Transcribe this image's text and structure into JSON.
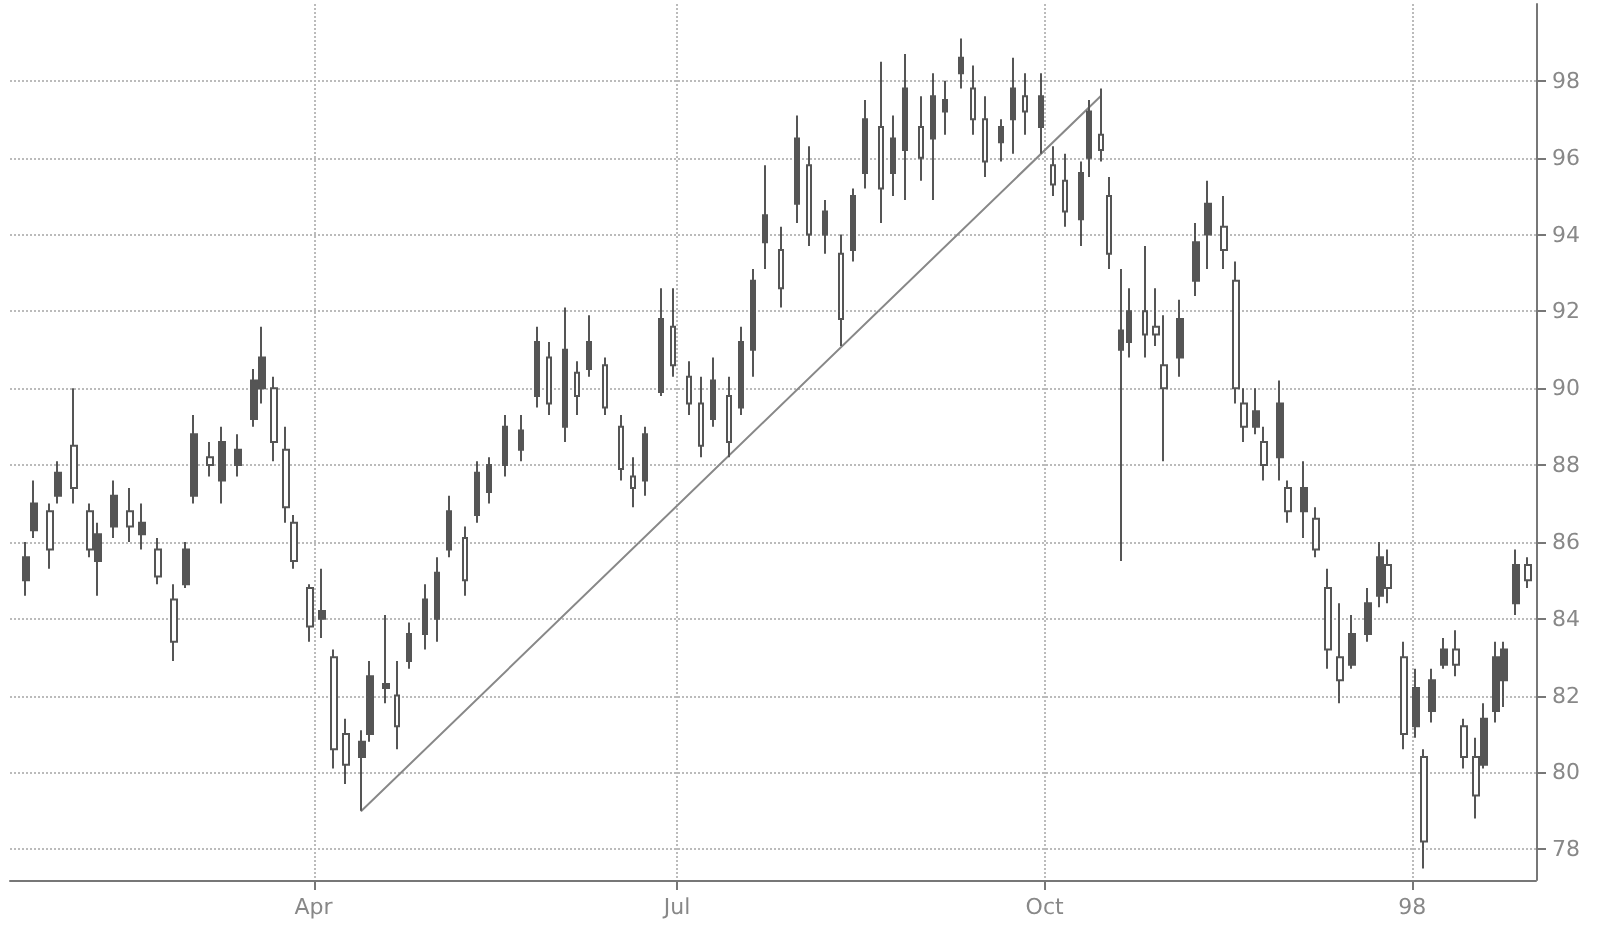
{
  "chart_data": {
    "type": "candlestick",
    "x": [
      "1997-01-19",
      "1997-01-21",
      "1997-01-25",
      "1997-01-27",
      "1997-01-31",
      "1997-02-04",
      "1997-02-06",
      "1997-02-10",
      "1997-02-14",
      "1997-02-17",
      "1997-02-21",
      "1997-02-25",
      "1997-02-28",
      "1997-03-02",
      "1997-03-06",
      "1997-03-09",
      "1997-03-13",
      "1997-03-17",
      "1997-03-19",
      "1997-03-22",
      "1997-03-25",
      "1997-03-27",
      "1997-03-31",
      "1997-04-03",
      "1997-04-06",
      "1997-04-09",
      "1997-04-13",
      "1997-04-15",
      "1997-04-19",
      "1997-04-22",
      "1997-04-25",
      "1997-04-29",
      "1997-05-02",
      "1997-05-05",
      "1997-05-09",
      "1997-05-12",
      "1997-05-15",
      "1997-05-19",
      "1997-05-23",
      "1997-05-27",
      "1997-05-30",
      "1997-06-03",
      "1997-06-06",
      "1997-06-09",
      "1997-06-13",
      "1997-06-17",
      "1997-06-20",
      "1997-06-23",
      "1997-06-27",
      "1997-06-30",
      "1997-07-04",
      "1997-07-07",
      "1997-07-10",
      "1997-07-14",
      "1997-07-17",
      "1997-07-20",
      "1997-07-23",
      "1997-07-27",
      "1997-07-31",
      "1997-08-03",
      "1997-08-07",
      "1997-08-11",
      "1997-08-14",
      "1997-08-17",
      "1997-08-21",
      "1997-08-24",
      "1997-08-27",
      "1997-08-31",
      "1997-09-03",
      "1997-09-06",
      "1997-09-10",
      "1997-09-13",
      "1997-09-16",
      "1997-09-20",
      "1997-09-23",
      "1997-09-26",
      "1997-09-30",
      "1997-10-03",
      "1997-10-06",
      "1997-10-10",
      "1997-10-12",
      "1997-10-15",
      "1997-10-17",
      "1997-10-20",
      "1997-10-22",
      "1997-10-26",
      "1997-10-29",
      "1997-10-31",
      "1997-11-04",
      "1997-11-08",
      "1997-11-11",
      "1997-11-15",
      "1997-11-18",
      "1997-11-20",
      "1997-11-23",
      "1997-11-25",
      "1997-11-29",
      "1997-12-01",
      "1997-12-05",
      "1997-12-08",
      "1997-12-11",
      "1997-12-14",
      "1997-12-17",
      "1997-12-21",
      "1997-12-24",
      "1997-12-26",
      "1997-12-30",
      "1998-01-02",
      "1998-01-04",
      "1998-01-06",
      "1998-01-09",
      "1998-01-12",
      "1998-01-14",
      "1998-01-17",
      "1998-01-19",
      "1998-01-22",
      "1998-01-24",
      "1998-01-27",
      "1998-01-30"
    ],
    "series": [
      {
        "color": "#555555",
        "ohlc": [
          [
            85.0,
            86.0,
            84.6,
            85.6
          ],
          [
            86.3,
            87.6,
            86.1,
            87.0
          ],
          [
            86.8,
            87.0,
            85.3,
            85.8
          ],
          [
            87.2,
            88.1,
            87.0,
            87.8
          ],
          [
            88.5,
            90.0,
            87.0,
            87.4
          ],
          [
            86.8,
            87.0,
            85.6,
            85.8
          ],
          [
            85.5,
            86.5,
            84.6,
            86.2
          ],
          [
            86.4,
            87.6,
            86.1,
            87.2
          ],
          [
            86.8,
            87.4,
            86.0,
            86.4
          ],
          [
            86.2,
            87.0,
            85.8,
            86.5
          ],
          [
            85.8,
            86.1,
            84.9,
            85.1
          ],
          [
            84.5,
            84.9,
            82.9,
            83.4
          ],
          [
            84.9,
            86.0,
            84.8,
            85.8
          ],
          [
            87.2,
            89.3,
            87.0,
            88.8
          ],
          [
            88.2,
            88.6,
            87.7,
            88.0
          ],
          [
            87.6,
            89.0,
            87.0,
            88.6
          ],
          [
            88.0,
            88.8,
            87.7,
            88.4
          ],
          [
            89.2,
            90.5,
            89.0,
            90.2
          ],
          [
            90.0,
            91.6,
            89.6,
            90.8
          ],
          [
            90.0,
            90.3,
            88.1,
            88.6
          ],
          [
            88.4,
            89.0,
            86.5,
            86.9
          ],
          [
            86.5,
            86.7,
            85.3,
            85.5
          ],
          [
            84.8,
            84.9,
            83.4,
            83.8
          ],
          [
            84.0,
            85.3,
            83.5,
            84.2
          ],
          [
            83.0,
            83.2,
            80.1,
            80.6
          ],
          [
            81.0,
            81.4,
            79.7,
            80.2
          ],
          [
            80.4,
            81.1,
            79.0,
            80.8
          ],
          [
            81.0,
            82.9,
            80.8,
            82.5
          ],
          [
            82.2,
            84.1,
            81.8,
            82.3
          ],
          [
            82.0,
            82.9,
            80.6,
            81.2
          ],
          [
            82.9,
            83.9,
            82.7,
            83.6
          ],
          [
            83.6,
            84.9,
            83.2,
            84.5
          ],
          [
            84.0,
            85.6,
            83.4,
            85.2
          ],
          [
            85.8,
            87.2,
            85.6,
            86.8
          ],
          [
            86.1,
            86.4,
            84.6,
            85.0
          ],
          [
            86.7,
            88.1,
            86.5,
            87.8
          ],
          [
            87.3,
            88.2,
            87.0,
            88.0
          ],
          [
            88.0,
            89.3,
            87.7,
            89.0
          ],
          [
            88.4,
            89.3,
            88.1,
            88.9
          ],
          [
            89.8,
            91.6,
            89.5,
            91.2
          ],
          [
            90.8,
            91.2,
            89.3,
            89.6
          ],
          [
            89.0,
            92.1,
            88.6,
            91.0
          ],
          [
            90.4,
            90.7,
            89.3,
            89.8
          ],
          [
            90.5,
            91.9,
            90.3,
            91.2
          ],
          [
            90.6,
            90.8,
            89.3,
            89.5
          ],
          [
            89.0,
            89.3,
            87.6,
            87.9
          ],
          [
            87.7,
            88.2,
            86.9,
            87.4
          ],
          [
            87.6,
            89.0,
            87.2,
            88.8
          ],
          [
            89.9,
            92.6,
            89.8,
            91.8
          ],
          [
            91.6,
            92.6,
            90.3,
            90.6
          ],
          [
            90.3,
            90.7,
            89.3,
            89.6
          ],
          [
            89.6,
            90.3,
            88.2,
            88.5
          ],
          [
            89.2,
            90.8,
            89.0,
            90.2
          ],
          [
            89.8,
            90.3,
            88.2,
            88.6
          ],
          [
            89.5,
            91.6,
            89.3,
            91.2
          ],
          [
            91.0,
            93.1,
            90.3,
            92.8
          ],
          [
            93.8,
            95.8,
            93.1,
            94.5
          ],
          [
            93.6,
            94.2,
            92.1,
            92.6
          ],
          [
            94.8,
            97.1,
            94.3,
            96.5
          ],
          [
            95.8,
            96.3,
            93.7,
            94.0
          ],
          [
            94.0,
            94.9,
            93.5,
            94.6
          ],
          [
            93.5,
            94.0,
            91.1,
            91.8
          ],
          [
            93.6,
            95.2,
            93.3,
            95.0
          ],
          [
            95.6,
            97.5,
            95.2,
            97.0
          ],
          [
            96.8,
            98.5,
            94.3,
            95.2
          ],
          [
            95.6,
            97.1,
            95.0,
            96.5
          ],
          [
            96.2,
            98.7,
            94.9,
            97.8
          ],
          [
            96.8,
            97.6,
            95.4,
            96.0
          ],
          [
            96.5,
            98.2,
            94.9,
            97.6
          ],
          [
            97.2,
            98.0,
            96.6,
            97.5
          ],
          [
            98.2,
            99.1,
            97.8,
            98.6
          ],
          [
            97.8,
            98.4,
            96.6,
            97.0
          ],
          [
            97.0,
            97.6,
            95.5,
            95.9
          ],
          [
            96.4,
            97.0,
            95.9,
            96.8
          ],
          [
            97.0,
            98.6,
            96.1,
            97.8
          ],
          [
            97.6,
            98.2,
            96.6,
            97.2
          ],
          [
            96.8,
            98.2,
            96.1,
            97.6
          ],
          [
            95.8,
            96.3,
            95.0,
            95.3
          ],
          [
            95.4,
            96.1,
            94.2,
            94.6
          ],
          [
            94.4,
            95.9,
            93.7,
            95.6
          ],
          [
            96.0,
            97.5,
            95.5,
            97.2
          ],
          [
            96.6,
            97.8,
            95.9,
            96.2
          ],
          [
            95.0,
            95.5,
            93.1,
            93.5
          ],
          [
            91.0,
            93.1,
            85.5,
            91.5
          ],
          [
            91.2,
            92.6,
            90.8,
            92.0
          ],
          [
            92.0,
            93.7,
            90.8,
            91.4
          ],
          [
            91.6,
            92.6,
            91.1,
            91.4
          ],
          [
            90.6,
            91.9,
            88.1,
            90.0
          ],
          [
            90.8,
            92.3,
            90.3,
            91.8
          ],
          [
            92.8,
            94.3,
            92.4,
            93.8
          ],
          [
            94.0,
            95.4,
            93.1,
            94.8
          ],
          [
            94.2,
            95.0,
            93.1,
            93.6
          ],
          [
            92.8,
            93.3,
            89.6,
            90.0
          ],
          [
            89.6,
            90.0,
            88.6,
            89.0
          ],
          [
            89.0,
            90.0,
            88.8,
            89.4
          ],
          [
            88.6,
            89.0,
            87.6,
            88.0
          ],
          [
            88.2,
            90.2,
            87.6,
            89.6
          ],
          [
            87.4,
            87.6,
            86.5,
            86.8
          ],
          [
            86.8,
            88.1,
            86.1,
            87.4
          ],
          [
            86.6,
            86.9,
            85.6,
            85.8
          ],
          [
            84.8,
            85.3,
            82.7,
            83.2
          ],
          [
            83.0,
            84.4,
            81.8,
            82.4
          ],
          [
            82.8,
            84.1,
            82.7,
            83.6
          ],
          [
            83.6,
            84.8,
            83.4,
            84.4
          ],
          [
            84.6,
            86.0,
            84.3,
            85.6
          ],
          [
            85.4,
            85.8,
            84.4,
            84.8
          ],
          [
            83.0,
            83.4,
            80.6,
            81.0
          ],
          [
            81.2,
            82.7,
            80.9,
            82.2
          ],
          [
            80.4,
            80.6,
            77.5,
            78.2
          ],
          [
            81.6,
            82.7,
            81.3,
            82.4
          ],
          [
            82.8,
            83.5,
            82.7,
            83.2
          ],
          [
            83.2,
            83.7,
            82.5,
            82.8
          ],
          [
            81.2,
            81.4,
            80.1,
            80.4
          ],
          [
            80.4,
            80.9,
            78.8,
            79.4
          ],
          [
            80.2,
            81.8,
            80.1,
            81.4
          ],
          [
            81.6,
            83.4,
            81.3,
            83.0
          ],
          [
            82.4,
            83.4,
            81.7,
            83.2
          ],
          [
            84.4,
            85.8,
            84.1,
            85.4
          ],
          [
            85.4,
            85.6,
            84.8,
            85.0
          ]
        ]
      },
      {
        "type": "line",
        "color": "#888888",
        "x": [
          "1997-04-13",
          "1997-10-15"
        ],
        "values": [
          79.0,
          97.6
        ]
      }
    ],
    "xlim": [
      "1997-01-15",
      "1998-02-01"
    ],
    "xticks": [
      {
        "value": "1997-04-01",
        "label": "Apr"
      },
      {
        "value": "1997-07-01",
        "label": "Jul"
      },
      {
        "value": "1997-10-01",
        "label": "Oct"
      },
      {
        "value": "1998-01-01",
        "label": "98"
      }
    ],
    "ylim": [
      77.2,
      100
    ],
    "yticks": [
      78,
      80,
      82,
      84,
      86,
      88,
      90,
      92,
      94,
      96,
      98
    ],
    "grid": true
  }
}
